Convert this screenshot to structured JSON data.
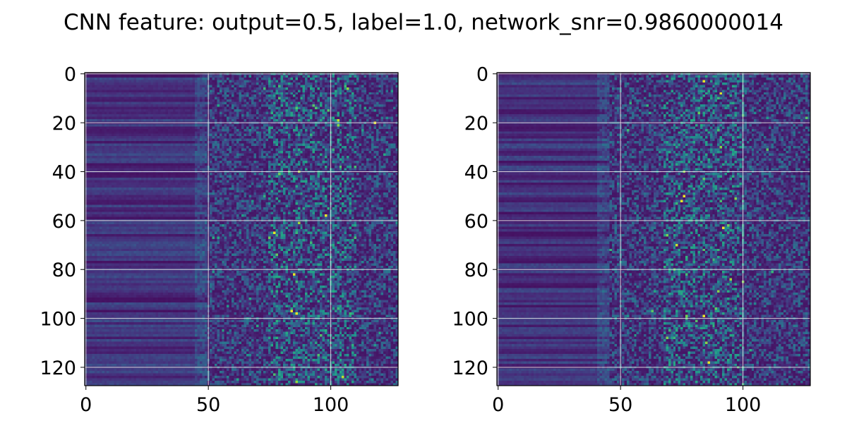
{
  "figure": {
    "title": "CNN feature: output=0.5, label=1.0, network_snr=0.9860000014"
  },
  "chart_data": [
    {
      "type": "heatmap",
      "title": "",
      "xlabel": "",
      "ylabel": "",
      "rows": 128,
      "cols": 128,
      "xlim": [
        0,
        127
      ],
      "ylim": [
        127,
        0
      ],
      "x_ticks": [
        0,
        50,
        100
      ],
      "y_ticks": [
        0,
        20,
        40,
        60,
        80,
        100,
        120
      ],
      "grid": true,
      "colormap": "viridis",
      "noise_onset_col": 50,
      "bright_band_cols": [
        75,
        110
      ],
      "hot_spots": [
        [
          97,
          84
        ],
        [
          98,
          86
        ],
        [
          65,
          77
        ],
        [
          82,
          85
        ],
        [
          20,
          118
        ],
        [
          58,
          98
        ]
      ],
      "seed": 7
    },
    {
      "type": "heatmap",
      "title": "",
      "xlabel": "",
      "ylabel": "",
      "rows": 128,
      "cols": 128,
      "xlim": [
        0,
        127
      ],
      "ylim": [
        127,
        0
      ],
      "x_ticks": [
        0,
        50,
        100
      ],
      "y_ticks": [
        0,
        20,
        40,
        60,
        80,
        100,
        120
      ],
      "grid": true,
      "colormap": "viridis",
      "noise_onset_col": 46,
      "bright_band_cols": [
        68,
        100
      ],
      "hot_spots": [
        [
          52,
          75
        ],
        [
          50,
          76
        ],
        [
          99,
          84
        ],
        [
          118,
          86
        ],
        [
          63,
          92
        ],
        [
          3,
          84
        ]
      ],
      "seed": 19
    }
  ]
}
